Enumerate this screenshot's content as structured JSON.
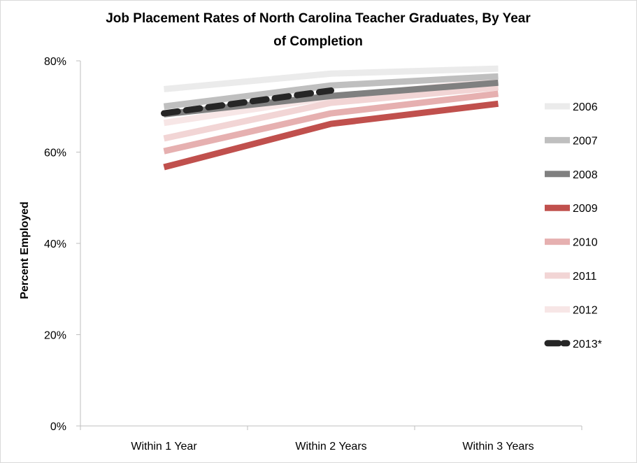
{
  "chart_data": {
    "type": "line",
    "title_line1": "Job Placement Rates of North Carolina Teacher Graduates, By Year",
    "title_line2": "of Completion",
    "xlabel": "",
    "ylabel": "Percent Employed",
    "categories": [
      "Within 1 Year",
      "Within 2 Years",
      "Within 3 Years"
    ],
    "ylim": [
      0,
      80
    ],
    "yticks": [
      0,
      20,
      40,
      60,
      80
    ],
    "ytick_labels": [
      "0%",
      "20%",
      "40%",
      "60%",
      "80%"
    ],
    "grid": false,
    "legend_position": "right",
    "series": [
      {
        "name": "2006",
        "color": "#ebebeb",
        "dashed": false,
        "values": [
          73.8,
          77.2,
          78.3
        ]
      },
      {
        "name": "2007",
        "color": "#bfbfbf",
        "dashed": false,
        "values": [
          70.0,
          74.6,
          76.6
        ]
      },
      {
        "name": "2008",
        "color": "#808080",
        "dashed": false,
        "values": [
          68.3,
          72.3,
          75.2
        ]
      },
      {
        "name": "2009",
        "color": "#c0504d",
        "dashed": false,
        "values": [
          56.7,
          66.2,
          70.6
        ]
      },
      {
        "name": "2010",
        "color": "#e6b0b0",
        "dashed": false,
        "values": [
          60.2,
          68.5,
          72.8
        ]
      },
      {
        "name": "2011",
        "color": "#f2d5d5",
        "dashed": false,
        "values": [
          63.0,
          70.8,
          74.2
        ]
      },
      {
        "name": "2012",
        "color": "#f7e6e6",
        "dashed": false,
        "values": [
          66.4,
          72.0,
          75.6
        ]
      },
      {
        "name": "2013*",
        "color": "#262626",
        "dashed": true,
        "values": [
          68.5,
          73.5,
          null
        ]
      }
    ]
  }
}
